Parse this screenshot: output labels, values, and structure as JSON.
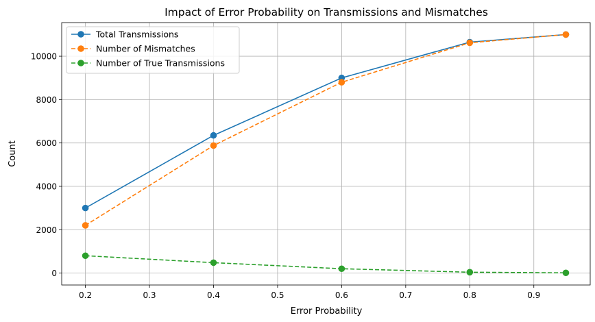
{
  "chart_data": {
    "type": "line",
    "title": "Impact of Error Probability on Transmissions and Mismatches",
    "xlabel": "Error Probability",
    "ylabel": "Count",
    "x": [
      0.2,
      0.4,
      0.6,
      0.8,
      0.95
    ],
    "xlim": [
      0.163,
      0.988
    ],
    "ylim": [
      -550,
      11550
    ],
    "xticks": [
      0.2,
      0.3,
      0.4,
      0.5,
      0.6,
      0.7,
      0.8,
      0.9
    ],
    "xtick_labels": [
      "0.2",
      "0.3",
      "0.4",
      "0.5",
      "0.6",
      "0.7",
      "0.8",
      "0.9"
    ],
    "yticks": [
      0,
      2000,
      4000,
      6000,
      8000,
      10000
    ],
    "ytick_labels": [
      "0",
      "2000",
      "4000",
      "6000",
      "8000",
      "10000"
    ],
    "grid": true,
    "legend_position": "upper-left",
    "series": [
      {
        "name": "Total Transmissions",
        "values": [
          3000,
          6350,
          9000,
          10650,
          11000
        ],
        "color": "#1f77b4",
        "linestyle": "solid",
        "marker": "circle"
      },
      {
        "name": "Number of Mismatches",
        "values": [
          2200,
          5880,
          8800,
          10620,
          11000
        ],
        "color": "#ff7f0e",
        "linestyle": "dashed",
        "marker": "circle"
      },
      {
        "name": "Number of True Transmissions",
        "values": [
          800,
          480,
          200,
          40,
          10
        ],
        "color": "#2ca02c",
        "linestyle": "dashed",
        "marker": "circle"
      }
    ]
  }
}
